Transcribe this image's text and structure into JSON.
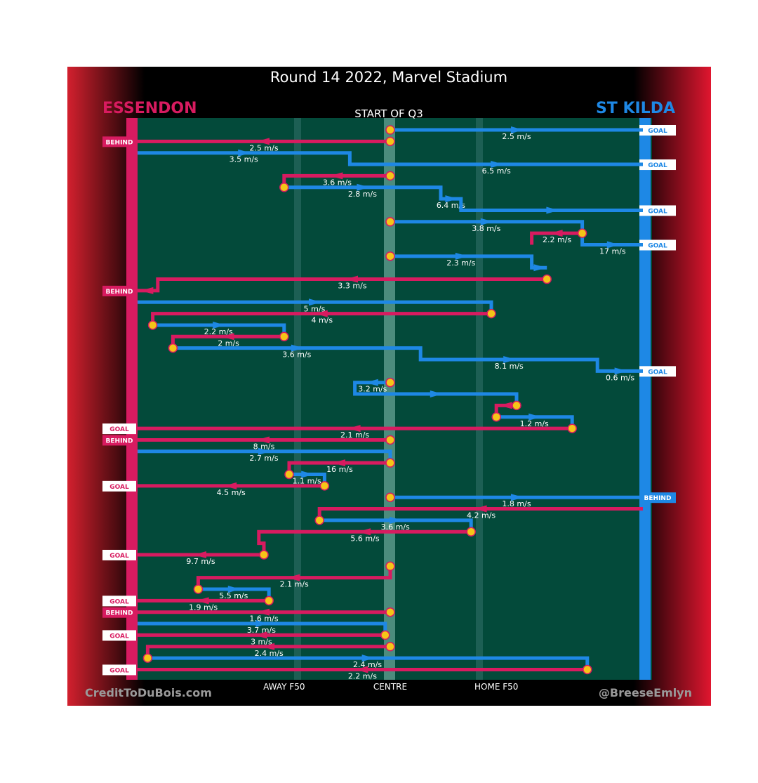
{
  "title": "Round 14 2022, Marvel Stadium",
  "team_left": "ESSENDON",
  "team_right": "ST KILDA",
  "subtitle": "START OF Q3",
  "credit_left": "CreditToDuBois.com",
  "credit_right": "@BreeseEmlyn",
  "colors": {
    "essendon": "#d81b60",
    "stkilda": "#1e88e5",
    "field": "#034a3a",
    "ball": "#f5c518"
  },
  "chart_data": {
    "type": "line",
    "x_axis": {
      "ticks": [
        {
          "label": "AWAY F50",
          "value": 0.29
        },
        {
          "label": "CENTRE",
          "value": 0.5
        },
        {
          "label": "HOME F50",
          "value": 0.71
        }
      ],
      "range": [
        0,
        1
      ]
    },
    "chains": [
      {
        "team": "stkilda",
        "outcome": "GOAL",
        "start": 0.5,
        "path": [
          [
            0.5,
            0
          ],
          [
            1,
            0
          ]
        ],
        "speeds": [
          "2.5 m/s"
        ]
      },
      {
        "team": "essendon",
        "outcome": "BEHIND",
        "start": 0.5,
        "path": [
          [
            0.5,
            1
          ],
          [
            0,
            1
          ]
        ],
        "speeds": [
          "2.5 m/s"
        ]
      },
      {
        "team": "stkilda",
        "outcome": "GOAL",
        "start": 0.0,
        "path": [
          [
            0,
            2
          ],
          [
            0.42,
            2
          ],
          [
            0.42,
            3
          ],
          [
            1,
            3
          ]
        ],
        "speeds": [
          "3.5 m/s",
          "6.5 m/s"
        ]
      },
      {
        "team": "essendon",
        "outcome": "",
        "start": 0.5,
        "path": [
          [
            0.5,
            4
          ],
          [
            0.29,
            4
          ],
          [
            0.29,
            5
          ]
        ],
        "speeds": [
          "3.6 m/s"
        ]
      },
      {
        "team": "stkilda",
        "outcome": "GOAL",
        "start": 0.29,
        "path": [
          [
            0.29,
            5
          ],
          [
            0.6,
            5
          ],
          [
            0.6,
            6
          ],
          [
            0.64,
            6
          ],
          [
            0.64,
            7
          ],
          [
            1,
            7
          ]
        ],
        "speeds": [
          "2.8 m/s",
          "6.4 m/s"
        ]
      },
      {
        "team": "stkilda",
        "outcome": "GOAL",
        "start": 0.5,
        "path": [
          [
            0.5,
            8
          ],
          [
            0.88,
            8
          ],
          [
            0.88,
            10
          ],
          [
            1,
            10
          ]
        ],
        "speeds": [
          "3.8 m/s",
          "17 m/s"
        ]
      },
      {
        "team": "essendon",
        "outcome": "",
        "start": 0.88,
        "path": [
          [
            0.88,
            9
          ],
          [
            0.78,
            9
          ],
          [
            0.78,
            10
          ]
        ],
        "speeds": [
          "2.2 m/s"
        ]
      },
      {
        "team": "stkilda",
        "outcome": "",
        "start": 0.5,
        "path": [
          [
            0.5,
            11
          ],
          [
            0.78,
            11
          ],
          [
            0.78,
            12
          ],
          [
            0.81,
            12
          ]
        ],
        "speeds": [
          "2.3 m/s"
        ]
      },
      {
        "team": "essendon",
        "outcome": "BEHIND",
        "start": 0.81,
        "path": [
          [
            0.81,
            13
          ],
          [
            0.04,
            13
          ],
          [
            0.04,
            14
          ],
          [
            0,
            14
          ]
        ],
        "speeds": [
          "3.3 m/s"
        ]
      },
      {
        "team": "stkilda",
        "outcome": "",
        "start": 0.0,
        "path": [
          [
            0,
            15
          ],
          [
            0.7,
            15
          ],
          [
            0.7,
            16
          ]
        ],
        "speeds": [
          "5 m/s"
        ]
      },
      {
        "team": "essendon",
        "outcome": "",
        "start": 0.7,
        "path": [
          [
            0.7,
            16
          ],
          [
            0.03,
            16
          ],
          [
            0.03,
            17
          ]
        ],
        "speeds": [
          "4 m/s"
        ]
      },
      {
        "team": "stkilda",
        "outcome": "",
        "start": 0.03,
        "path": [
          [
            0.03,
            17
          ],
          [
            0.29,
            17
          ],
          [
            0.29,
            18
          ]
        ],
        "speeds": [
          "2.2 m/s"
        ]
      },
      {
        "team": "essendon",
        "outcome": "",
        "start": 0.29,
        "path": [
          [
            0.29,
            18
          ],
          [
            0.07,
            18
          ],
          [
            0.07,
            19
          ]
        ],
        "speeds": [
          "2 m/s"
        ]
      },
      {
        "team": "stkilda",
        "outcome": "GOAL",
        "start": 0.07,
        "path": [
          [
            0.07,
            19
          ],
          [
            0.56,
            19
          ],
          [
            0.56,
            20
          ],
          [
            0.91,
            20
          ],
          [
            0.91,
            21
          ],
          [
            1,
            21
          ]
        ],
        "speeds": [
          "3.6 m/s",
          "8.1 m/s",
          "0.6 m/s"
        ]
      },
      {
        "team": "stkilda",
        "outcome": "",
        "start": 0.5,
        "path": [
          [
            0.5,
            22
          ],
          [
            0.43,
            22
          ],
          [
            0.43,
            23
          ],
          [
            0.75,
            23
          ],
          [
            0.75,
            24
          ]
        ],
        "speeds": [
          "3.2 m/s"
        ]
      },
      {
        "team": "essendon",
        "outcome": "",
        "start": 0.75,
        "path": [
          [
            0.75,
            24
          ],
          [
            0.71,
            24
          ],
          [
            0.71,
            25
          ]
        ],
        "speeds": []
      },
      {
        "team": "stkilda",
        "outcome": "",
        "start": 0.71,
        "path": [
          [
            0.71,
            25
          ],
          [
            0.86,
            25
          ],
          [
            0.86,
            26
          ]
        ],
        "speeds": [
          "1.2 m/s"
        ]
      },
      {
        "team": "essendon",
        "outcome": "GOAL",
        "start": 0.86,
        "path": [
          [
            0.86,
            26
          ],
          [
            0,
            26
          ]
        ],
        "speeds": [
          "2.1 m/s"
        ]
      },
      {
        "team": "essendon",
        "outcome": "BEHIND",
        "start": 0.5,
        "path": [
          [
            0.5,
            27
          ],
          [
            0,
            27
          ]
        ],
        "speeds": [
          "8 m/s"
        ]
      },
      {
        "team": "stkilda",
        "outcome": "",
        "start": 0.0,
        "path": [
          [
            0,
            28
          ],
          [
            0.5,
            28
          ],
          [
            0.5,
            29
          ]
        ],
        "speeds": [
          "2.7 m/s"
        ]
      },
      {
        "team": "essendon",
        "outcome": "",
        "start": 0.5,
        "path": [
          [
            0.5,
            29
          ],
          [
            0.3,
            29
          ],
          [
            0.3,
            30
          ]
        ],
        "speeds": [
          "16 m/s"
        ]
      },
      {
        "team": "stkilda",
        "outcome": "",
        "start": 0.3,
        "path": [
          [
            0.3,
            30
          ],
          [
            0.37,
            30
          ],
          [
            0.37,
            31
          ]
        ],
        "speeds": [
          "1.1 m/s"
        ]
      },
      {
        "team": "essendon",
        "outcome": "GOAL",
        "start": 0.37,
        "path": [
          [
            0.37,
            31
          ],
          [
            0,
            31
          ]
        ],
        "speeds": [
          "4.5 m/s"
        ]
      },
      {
        "team": "stkilda",
        "outcome": "BEHIND",
        "start": 0.5,
        "path": [
          [
            0.5,
            32
          ],
          [
            1,
            32
          ]
        ],
        "speeds": [
          "1.8 m/s"
        ]
      },
      {
        "team": "essendon",
        "outcome": "",
        "start": 1.0,
        "path": [
          [
            1,
            33
          ],
          [
            0.36,
            33
          ],
          [
            0.36,
            34
          ]
        ],
        "speeds": [
          "4.2 m/s"
        ]
      },
      {
        "team": "stkilda",
        "outcome": "",
        "start": 0.36,
        "path": [
          [
            0.36,
            34
          ],
          [
            0.66,
            34
          ],
          [
            0.66,
            35
          ]
        ],
        "speeds": [
          "3.6 m/s"
        ]
      },
      {
        "team": "essendon",
        "outcome": "",
        "start": 0.66,
        "path": [
          [
            0.66,
            35
          ],
          [
            0.24,
            35
          ],
          [
            0.24,
            36
          ],
          [
            0.25,
            36
          ],
          [
            0.25,
            37
          ]
        ],
        "speeds": [
          "5.6 m/s"
        ]
      },
      {
        "team": "essendon",
        "outcome": "GOAL",
        "start": 0.25,
        "path": [
          [
            0.25,
            37
          ],
          [
            0,
            37
          ]
        ],
        "speeds": [
          "9.7 m/s"
        ]
      },
      {
        "team": "essendon",
        "outcome": "",
        "start": 0.5,
        "path": [
          [
            0.5,
            38
          ],
          [
            0.5,
            39
          ],
          [
            0.12,
            39
          ],
          [
            0.12,
            40
          ]
        ],
        "speeds": [
          "2.1 m/s"
        ]
      },
      {
        "team": "stkilda",
        "outcome": "",
        "start": 0.12,
        "path": [
          [
            0.12,
            40
          ],
          [
            0.26,
            40
          ],
          [
            0.26,
            41
          ]
        ],
        "speeds": [
          "5.5 m/s"
        ]
      },
      {
        "team": "essendon",
        "outcome": "GOAL",
        "start": 0.26,
        "path": [
          [
            0.26,
            41
          ],
          [
            0,
            41
          ]
        ],
        "speeds": [
          "1.9 m/s"
        ]
      },
      {
        "team": "essendon",
        "outcome": "BEHIND",
        "start": 0.5,
        "path": [
          [
            0.5,
            42
          ],
          [
            0,
            42
          ]
        ],
        "speeds": [
          "1.6 m/s"
        ]
      },
      {
        "team": "stkilda",
        "outcome": "",
        "start": 0.0,
        "path": [
          [
            0,
            43
          ],
          [
            0.49,
            43
          ],
          [
            0.49,
            44
          ]
        ],
        "speeds": [
          "3.7 m/s"
        ]
      },
      {
        "team": "essendon",
        "outcome": "GOAL",
        "start": 0.49,
        "path": [
          [
            0.49,
            44
          ],
          [
            0,
            44
          ]
        ],
        "speeds": [
          "3 m/s"
        ]
      },
      {
        "team": "essendon",
        "outcome": "",
        "start": 0.5,
        "path": [
          [
            0.5,
            45
          ],
          [
            0.02,
            45
          ],
          [
            0.02,
            46
          ]
        ],
        "speeds": [
          "2.4 m/s"
        ]
      },
      {
        "team": "stkilda",
        "outcome": "",
        "start": 0.02,
        "path": [
          [
            0.02,
            46
          ],
          [
            0.89,
            46
          ],
          [
            0.89,
            47
          ]
        ],
        "speeds": [
          "2.4 m/s"
        ]
      },
      {
        "team": "essendon",
        "outcome": "GOAL",
        "start": 0.89,
        "path": [
          [
            0.89,
            47
          ],
          [
            0,
            47
          ]
        ],
        "speeds": [
          "2.2 m/s"
        ]
      }
    ]
  }
}
